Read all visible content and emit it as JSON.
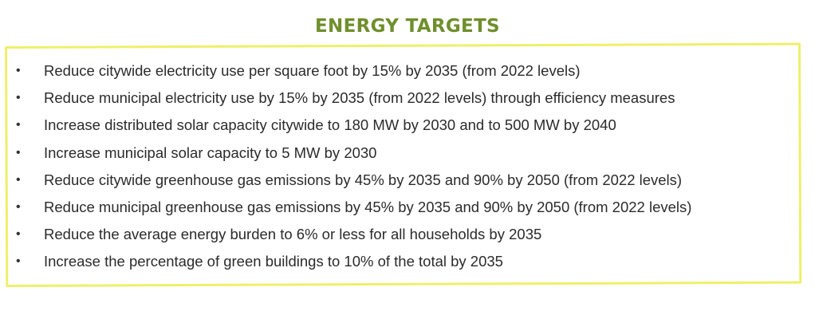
{
  "title": "ENERGY TARGETS",
  "bullet_glyph": "•",
  "colors": {
    "title": "#6f8f2c",
    "border": "#eef06a",
    "text": "#2b2b2b"
  },
  "items": [
    "Reduce citywide electricity use per square foot by 15% by 2035 (from 2022 levels)",
    "Reduce municipal electricity use by 15% by 2035 (from 2022 levels) through efficiency measures",
    "Increase distributed solar capacity citywide to 180 MW by 2030 and to 500 MW by 2040",
    "Increase municipal solar capacity to 5 MW by 2030",
    "Reduce citywide greenhouse gas emissions by 45% by 2035 and 90% by 2050 (from 2022 levels)",
    "Reduce municipal greenhouse gas emissions by 45% by 2035 and 90% by 2050 (from 2022 levels)",
    "Reduce the average energy burden to 6% or less for all households by 2035",
    "Increase the percentage of green buildings to 10% of the total by 2035"
  ]
}
